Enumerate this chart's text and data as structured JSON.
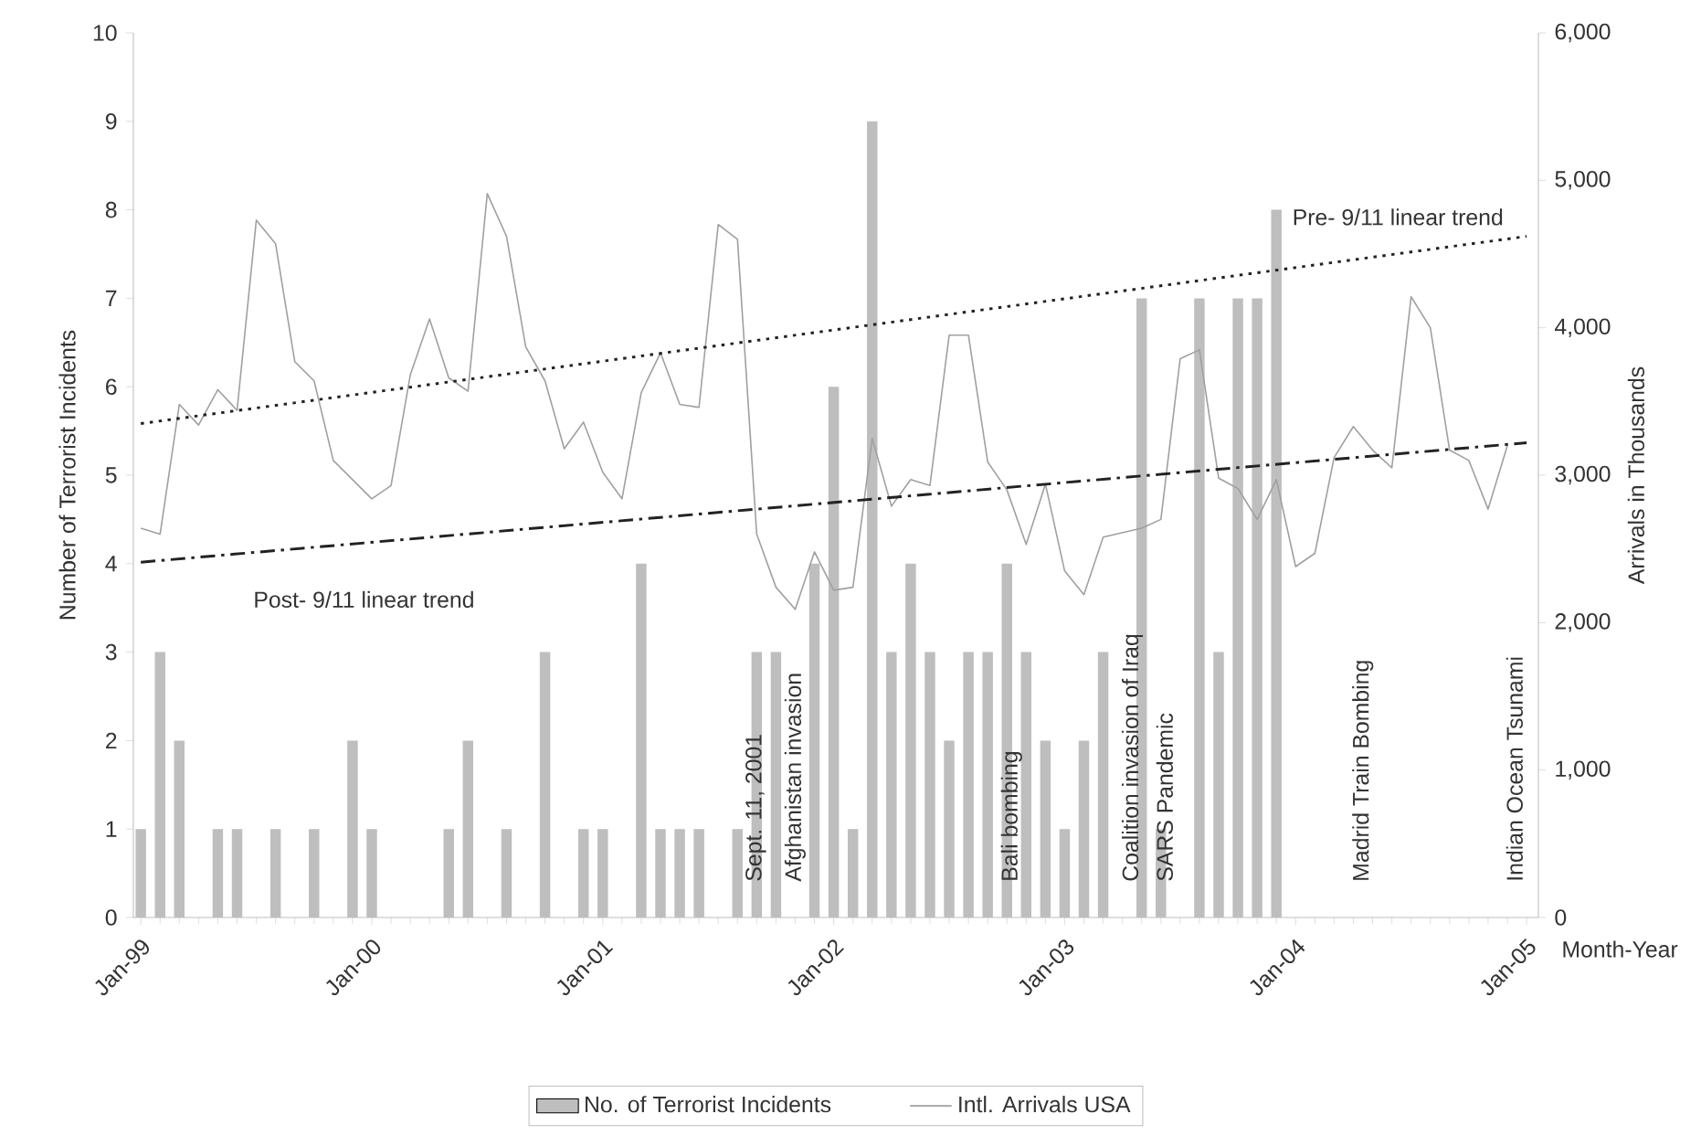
{
  "chart_data": {
    "type": "bar",
    "xlabel": "Month-Year",
    "ylabel": "Number of Terrorist Incidents",
    "y2label": "Arrivals in Thousands",
    "x": [
      "1999-01",
      "1999-02",
      "1999-03",
      "1999-04",
      "1999-05",
      "1999-06",
      "1999-07",
      "1999-08",
      "1999-09",
      "1999-10",
      "1999-11",
      "1999-12",
      "2000-01",
      "2000-02",
      "2000-03",
      "2000-04",
      "2000-05",
      "2000-06",
      "2000-07",
      "2000-08",
      "2000-09",
      "2000-10",
      "2000-11",
      "2000-12",
      "2001-01",
      "2001-02",
      "2001-03",
      "2001-04",
      "2001-05",
      "2001-06",
      "2001-07",
      "2001-08",
      "2001-09",
      "2001-10",
      "2001-11",
      "2001-12",
      "2002-01",
      "2002-02",
      "2002-03",
      "2002-04",
      "2002-05",
      "2002-06",
      "2002-07",
      "2002-08",
      "2002-09",
      "2002-10",
      "2002-11",
      "2002-12",
      "2003-01",
      "2003-02",
      "2003-03",
      "2003-04",
      "2003-05",
      "2003-06",
      "2003-07",
      "2003-08",
      "2003-09",
      "2003-10",
      "2003-11",
      "2003-12",
      "2004-01",
      "2004-02",
      "2004-03",
      "2004-04",
      "2004-05",
      "2004-06",
      "2004-07",
      "2004-08",
      "2004-09",
      "2004-10",
      "2004-11",
      "2004-12"
    ],
    "series": [
      {
        "name": "No. of Terrorist Incidents",
        "color": "#bebebe",
        "values": [
          1,
          3,
          2,
          0,
          1,
          1,
          0,
          1,
          0,
          1,
          0,
          2,
          1,
          0,
          0,
          0,
          1,
          2,
          0,
          1,
          0,
          3,
          0,
          1,
          1,
          0,
          4,
          1,
          1,
          1,
          0,
          1,
          3,
          3,
          0,
          4,
          6,
          1,
          9,
          3,
          4,
          3,
          2,
          3,
          3,
          4,
          3,
          2,
          1,
          2,
          3,
          0,
          7,
          1,
          0,
          7,
          3,
          7,
          7,
          8,
          null,
          null,
          null,
          null,
          null,
          null,
          null,
          null,
          null,
          null,
          null,
          null
        ]
      },
      {
        "name": "Intl. Arrivals USA",
        "type": "line",
        "axis": "y2",
        "color": "#a0a0a0",
        "values": [
          2640,
          2600,
          3480,
          3340,
          3580,
          3440,
          4730,
          4570,
          3770,
          3640,
          3100,
          2970,
          2840,
          2930,
          3680,
          4060,
          3660,
          3570,
          4910,
          4620,
          3870,
          3640,
          3180,
          3360,
          3020,
          2840,
          3560,
          3830,
          3480,
          3460,
          4700,
          4600,
          2600,
          2240,
          2090,
          2480,
          2220,
          2240,
          3250,
          2790,
          2970,
          2930,
          3950,
          3950,
          3090,
          2900,
          2530,
          2940,
          2350,
          2190,
          2580,
          2610,
          2640,
          2700,
          3790,
          3850,
          2980,
          2910,
          2700,
          2970,
          2380,
          2470,
          3120,
          3330,
          3170,
          3050,
          4210,
          4000,
          3170,
          3100,
          2770,
          3200
        ]
      },
      {
        "name": "Pre- 9/11 linear trend",
        "type": "line",
        "axis": "y2",
        "color": "#222222",
        "line_style": "dotted",
        "x": [
          "1999-01",
          "2005-01"
        ],
        "values": [
          3350,
          4620
        ]
      },
      {
        "name": "Post- 9/11 linear trend",
        "type": "line",
        "axis": "y2",
        "color": "#222222",
        "line_style": "dashdot",
        "x": [
          "1999-01",
          "2005-01"
        ],
        "values": [
          2410,
          3220
        ]
      }
    ],
    "xlim": [
      "1998-12-20",
      "2005-01-20"
    ],
    "xticks": [
      {
        "value": "1999-01",
        "label": "Jan-99"
      },
      {
        "value": "2000-01",
        "label": "Jan-00"
      },
      {
        "value": "2001-01",
        "label": "Jan-01"
      },
      {
        "value": "2002-01",
        "label": "Jan-02"
      },
      {
        "value": "2003-01",
        "label": "Jan-03"
      },
      {
        "value": "2004-01",
        "label": "Jan-04"
      },
      {
        "value": "2005-01",
        "label": "Jan-05"
      }
    ],
    "ylim": [
      0,
      10
    ],
    "yticks": [
      0,
      1,
      2,
      3,
      4,
      5,
      6,
      7,
      8,
      9,
      10
    ],
    "y2lim": [
      0,
      6000
    ],
    "y2ticks": [
      0,
      {
        "value": 1000,
        "label": "1,000"
      },
      {
        "value": 2000,
        "label": "2,000"
      },
      {
        "value": 3000,
        "label": "3,000"
      },
      {
        "value": 4000,
        "label": "4,000"
      },
      {
        "value": 5000,
        "label": "5,000"
      },
      {
        "value": 6000,
        "label": "6,000"
      }
    ],
    "legend": "bottom",
    "annotations": [
      "Sept. 11, 2001",
      "Afghanistan invasion",
      "Bali bombing",
      "Coalition invasion of Iraq",
      "SARS Pandemic",
      "Madrid Train Bombing",
      "Indian Ocean Tsunami"
    ]
  }
}
